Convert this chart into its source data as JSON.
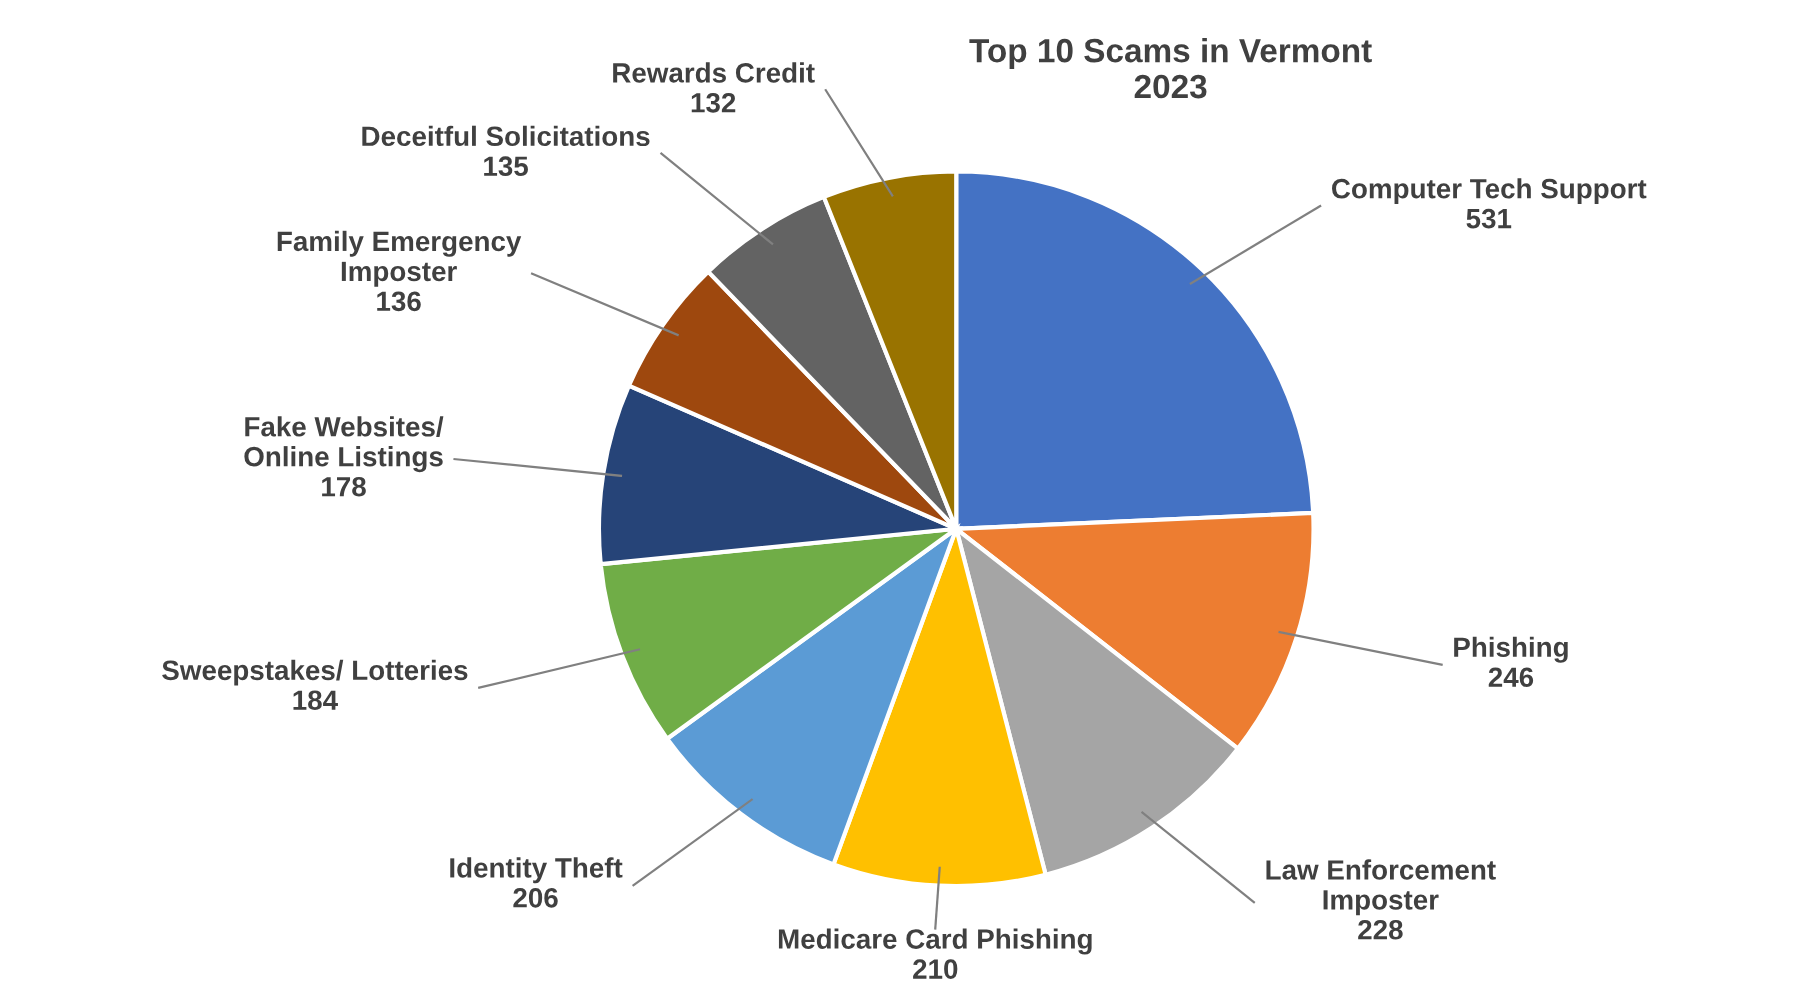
{
  "chart_data": {
    "type": "pie",
    "title": "Top 10 Scams in Vermont\n2023",
    "categories": [
      "Computer Tech Support",
      "Phishing",
      "Law Enforcement\nImposter",
      "Medicare Card Phishing",
      "Identity Theft",
      "Sweepstakes/ Lotteries",
      "Fake Websites/\nOnline Listings",
      "Family Emergency\nImposter",
      "Deceitful Solicitations",
      "Rewards Credit"
    ],
    "values": [
      531,
      246,
      228,
      210,
      206,
      184,
      178,
      136,
      135,
      132
    ],
    "colors": [
      "#4472c4",
      "#ed7d31",
      "#a5a5a5",
      "#ffc000",
      "#5b9bd5",
      "#70ad47",
      "#264478",
      "#9e480e",
      "#636363",
      "#997300"
    ],
    "data_labels": true
  }
}
